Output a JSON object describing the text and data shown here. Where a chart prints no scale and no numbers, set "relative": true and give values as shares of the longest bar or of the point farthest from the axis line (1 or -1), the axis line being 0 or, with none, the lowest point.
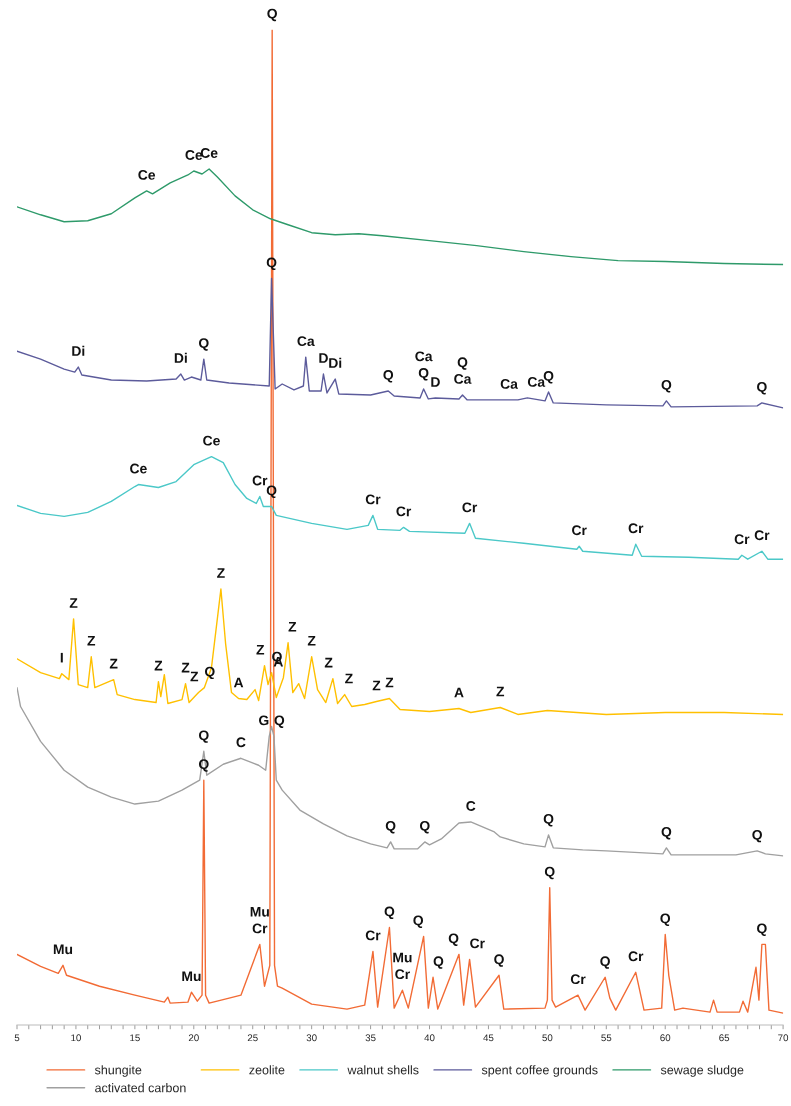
{
  "chart_data": {
    "type": "line",
    "relative": true,
    "legend": "bottom",
    "grid": false,
    "marker": "none",
    "line_style": "solid",
    "xlim": [
      5,
      70
    ],
    "xticks": [
      5,
      {
        "value": 6,
        "label": null
      },
      {
        "value": 7,
        "label": null
      },
      {
        "value": 8,
        "label": null
      },
      {
        "value": 9,
        "label": null
      },
      10,
      {
        "value": 11,
        "label": null
      },
      {
        "value": 12,
        "label": null
      },
      {
        "value": 13,
        "label": null
      },
      {
        "value": 14,
        "label": null
      },
      15,
      {
        "value": 16,
        "label": null
      },
      {
        "value": 17,
        "label": null
      },
      {
        "value": 18,
        "label": null
      },
      {
        "value": 19,
        "label": null
      },
      20,
      {
        "value": 21,
        "label": null
      },
      {
        "value": 22,
        "label": null
      },
      {
        "value": 23,
        "label": null
      },
      {
        "value": 24,
        "label": null
      },
      25,
      {
        "value": 26,
        "label": null
      },
      {
        "value": 27,
        "label": null
      },
      {
        "value": 28,
        "label": null
      },
      {
        "value": 29,
        "label": null
      },
      30,
      {
        "value": 31,
        "label": null
      },
      {
        "value": 32,
        "label": null
      },
      {
        "value": 33,
        "label": null
      },
      {
        "value": 34,
        "label": null
      },
      35,
      {
        "value": 36,
        "label": null
      },
      {
        "value": 37,
        "label": null
      },
      {
        "value": 38,
        "label": null
      },
      {
        "value": 39,
        "label": null
      },
      40,
      {
        "value": 41,
        "label": null
      },
      {
        "value": 42,
        "label": null
      },
      {
        "value": 43,
        "label": null
      },
      {
        "value": 44,
        "label": null
      },
      45,
      {
        "value": 46,
        "label": null
      },
      {
        "value": 47,
        "label": null
      },
      {
        "value": 48,
        "label": null
      },
      {
        "value": 49,
        "label": null
      },
      50,
      {
        "value": 51,
        "label": null
      },
      {
        "value": 52,
        "label": null
      },
      {
        "value": 53,
        "label": null
      },
      {
        "value": 54,
        "label": null
      },
      55,
      {
        "value": 56,
        "label": null
      },
      {
        "value": 57,
        "label": null
      },
      {
        "value": 58,
        "label": null
      },
      {
        "value": 59,
        "label": null
      },
      60,
      {
        "value": 61,
        "label": null
      },
      {
        "value": 62,
        "label": null
      },
      {
        "value": 63,
        "label": null
      },
      {
        "value": 64,
        "label": null
      },
      65,
      {
        "value": 66,
        "label": null
      },
      {
        "value": 67,
        "label": null
      },
      {
        "value": 68,
        "label": null
      },
      {
        "value": 69,
        "label": null
      },
      70
    ],
    "series": [
      {
        "name": "shungite",
        "color": "#f26b35",
        "x": [
          5,
          7,
          8.5,
          8.9,
          9.2,
          12,
          15,
          17.5,
          17.8,
          18,
          19.5,
          19.8,
          20.3,
          20.7,
          20.85,
          21.0,
          21.3,
          23,
          24,
          25.6,
          26.0,
          26.45,
          26.65,
          26.85,
          27.1,
          27.5,
          30,
          33,
          34.5,
          35.2,
          35.6,
          36.6,
          37,
          37.7,
          38.2,
          39.5,
          39.9,
          40.3,
          40.7,
          42.5,
          42.9,
          43.4,
          43.9,
          45.9,
          46.3,
          49.8,
          50.0,
          50.2,
          50.4,
          50.7,
          52.6,
          53.2,
          54.9,
          55.3,
          55.8,
          57.5,
          58.2,
          59.7,
          60,
          60.3,
          60.8,
          61.5,
          63.8,
          64.1,
          64.4,
          66.3,
          66.6,
          67,
          67.7,
          67.95,
          68.2,
          68.5,
          68.8,
          70
        ],
        "values": [
          0.071,
          0.059,
          0.052,
          0.06,
          0.05,
          0.039,
          0.03,
          0.023,
          0.028,
          0.022,
          0.023,
          0.033,
          0.024,
          0.03,
          0.246,
          0.03,
          0.022,
          0.027,
          0.03,
          0.081,
          0.039,
          0.06,
          1.0,
          0.06,
          0.039,
          0.037,
          0.021,
          0.016,
          0.02,
          0.074,
          0.018,
          0.098,
          0.017,
          0.035,
          0.017,
          0.089,
          0.017,
          0.048,
          0.016,
          0.071,
          0.02,
          0.066,
          0.018,
          0.05,
          0.016,
          0.017,
          0.025,
          0.138,
          0.025,
          0.018,
          0.03,
          0.015,
          0.048,
          0.027,
          0.015,
          0.053,
          0.015,
          0.017,
          0.091,
          0.05,
          0.015,
          0.017,
          0.013,
          0.025,
          0.013,
          0.013,
          0.024,
          0.013,
          0.058,
          0.025,
          0.081,
          0.081,
          0.015,
          0.012
        ]
      },
      {
        "name": "activated carbon",
        "color": "#a0a0a0",
        "x": [
          5,
          5.3,
          7,
          9,
          11,
          13,
          15,
          17,
          19,
          20.5,
          20.85,
          21.1,
          22.5,
          24,
          25.5,
          26.1,
          26.4,
          26.6,
          26.8,
          27.0,
          27.5,
          29,
          31,
          33,
          35,
          36.4,
          36.7,
          37,
          39,
          39.6,
          40,
          41,
          42.5,
          43.5,
          45.5,
          46,
          48,
          49.8,
          50.1,
          50.5,
          53,
          55,
          59.8,
          60.1,
          60.5,
          66,
          67.8,
          68.5,
          70
        ],
        "values": [
          0.339,
          0.32,
          0.285,
          0.256,
          0.239,
          0.229,
          0.222,
          0.225,
          0.236,
          0.246,
          0.275,
          0.251,
          0.262,
          0.268,
          0.261,
          0.256,
          0.29,
          0.3,
          0.29,
          0.246,
          0.236,
          0.216,
          0.202,
          0.19,
          0.182,
          0.178,
          0.184,
          0.177,
          0.177,
          0.184,
          0.181,
          0.187,
          0.203,
          0.204,
          0.194,
          0.189,
          0.182,
          0.179,
          0.191,
          0.178,
          0.176,
          0.175,
          0.172,
          0.178,
          0.171,
          0.171,
          0.175,
          0.172,
          0.17
        ]
      },
      {
        "name": "zeolite",
        "color": "#ffc000",
        "x": [
          5,
          7,
          8.6,
          8.8,
          9.4,
          9.8,
          10.2,
          11.0,
          11.3,
          11.6,
          13.2,
          13.5,
          15,
          16.8,
          17,
          17.2,
          17.5,
          17.8,
          19,
          19.3,
          19.6,
          20.4,
          20.9,
          21.5,
          22.3,
          22.7,
          23.2,
          23.8,
          24.5,
          25.2,
          25.5,
          26.0,
          26.3,
          26.6,
          27.0,
          27.6,
          28.0,
          28.4,
          28.9,
          29.4,
          30.0,
          30.5,
          31.2,
          31.8,
          32.2,
          32.8,
          33.4,
          34.5,
          35.5,
          36.6,
          37.5,
          40,
          42.5,
          43.5,
          46,
          47.5,
          50,
          55,
          60,
          65,
          70
        ],
        "values": [
          0.368,
          0.354,
          0.348,
          0.353,
          0.347,
          0.408,
          0.342,
          0.339,
          0.37,
          0.339,
          0.347,
          0.332,
          0.327,
          0.324,
          0.345,
          0.33,
          0.352,
          0.323,
          0.327,
          0.343,
          0.324,
          0.334,
          0.339,
          0.359,
          0.438,
          0.383,
          0.334,
          0.328,
          0.327,
          0.337,
          0.326,
          0.361,
          0.342,
          0.354,
          0.329,
          0.349,
          0.384,
          0.334,
          0.343,
          0.328,
          0.37,
          0.337,
          0.324,
          0.348,
          0.323,
          0.332,
          0.32,
          0.322,
          0.325,
          0.328,
          0.317,
          0.315,
          0.318,
          0.314,
          0.319,
          0.312,
          0.316,
          0.312,
          0.314,
          0.314,
          0.312
        ]
      },
      {
        "name": "walnut shells",
        "color": "#4bc8c8",
        "x": [
          5,
          7,
          9,
          11,
          13,
          15,
          15.3,
          17,
          18.5,
          20,
          21.5,
          22.5,
          23.5,
          24.5,
          25.3,
          25.6,
          25.9,
          26.6,
          27,
          30,
          33,
          34.8,
          35.2,
          35.6,
          37.5,
          37.8,
          38.3,
          43.0,
          43.4,
          43.9,
          48,
          52.5,
          52.7,
          53,
          57.2,
          57.5,
          58,
          62,
          66.2,
          66.5,
          67,
          68.2,
          68.7,
          70
        ],
        "values": [
          0.522,
          0.514,
          0.511,
          0.515,
          0.526,
          0.541,
          0.543,
          0.54,
          0.546,
          0.563,
          0.571,
          0.565,
          0.543,
          0.529,
          0.524,
          0.531,
          0.521,
          0.521,
          0.512,
          0.504,
          0.498,
          0.502,
          0.512,
          0.498,
          0.497,
          0.5,
          0.496,
          0.494,
          0.504,
          0.489,
          0.484,
          0.478,
          0.481,
          0.476,
          0.472,
          0.483,
          0.471,
          0.47,
          0.468,
          0.472,
          0.468,
          0.476,
          0.468,
          0.468
        ]
      },
      {
        "name": "spent coffee grounds",
        "color": "#5c5b9b",
        "x": [
          5,
          7,
          9,
          9.9,
          10.2,
          10.5,
          13,
          16,
          18.5,
          18.9,
          19.2,
          19.8,
          20.6,
          20.85,
          21.1,
          23,
          26.4,
          26.6,
          26.9,
          27.5,
          28.5,
          29.3,
          29.5,
          29.8,
          30.8,
          31.0,
          31.3,
          32.0,
          32.3,
          35,
          36.5,
          37,
          39.2,
          39.5,
          39.9,
          40.5,
          42.5,
          42.8,
          43.2,
          47.5,
          48.3,
          49.8,
          50.1,
          50.5,
          55,
          59.8,
          60.1,
          60.5,
          67.8,
          68.2,
          70
        ],
        "values": [
          0.677,
          0.669,
          0.659,
          0.656,
          0.661,
          0.653,
          0.648,
          0.647,
          0.649,
          0.654,
          0.648,
          0.651,
          0.648,
          0.669,
          0.648,
          0.645,
          0.642,
          0.75,
          0.639,
          0.644,
          0.638,
          0.642,
          0.671,
          0.637,
          0.637,
          0.654,
          0.635,
          0.649,
          0.634,
          0.633,
          0.637,
          0.632,
          0.63,
          0.639,
          0.629,
          0.63,
          0.629,
          0.633,
          0.628,
          0.628,
          0.63,
          0.627,
          0.636,
          0.625,
          0.623,
          0.622,
          0.627,
          0.621,
          0.622,
          0.625,
          0.62
        ]
      },
      {
        "name": "sewage sludge",
        "color": "#2e9a6a",
        "x": [
          5,
          7,
          9,
          11,
          13,
          15,
          16,
          16.5,
          18,
          19.5,
          20,
          20.7,
          21.3,
          22,
          23.5,
          25,
          26.5,
          28,
          30,
          32,
          34,
          36,
          40,
          44,
          48,
          52,
          56,
          60,
          65,
          70
        ],
        "values": [
          0.822,
          0.814,
          0.807,
          0.808,
          0.815,
          0.831,
          0.838,
          0.835,
          0.846,
          0.854,
          0.858,
          0.855,
          0.86,
          0.852,
          0.833,
          0.819,
          0.81,
          0.804,
          0.796,
          0.794,
          0.795,
          0.793,
          0.788,
          0.783,
          0.777,
          0.772,
          0.768,
          0.767,
          0.765,
          0.764
        ]
      }
    ],
    "annotations": [
      {
        "text": "Q",
        "x": 26.65,
        "y": 1.0
      },
      {
        "text": "Ce",
        "x": 16,
        "y": 0.838
      },
      {
        "text": "Ce",
        "x": 20,
        "y": 0.858
      },
      {
        "text": "Ce",
        "x": 21.3,
        "y": 0.86
      },
      {
        "text": "Q",
        "x": 26.6,
        "y": 0.75
      },
      {
        "text": "Di",
        "x": 10.2,
        "y": 0.661
      },
      {
        "text": "Di",
        "x": 18.9,
        "y": 0.654
      },
      {
        "text": "Q",
        "x": 20.85,
        "y": 0.669
      },
      {
        "text": "Ca",
        "x": 29.5,
        "y": 0.671
      },
      {
        "text": "D",
        "x": 31.0,
        "y": 0.654
      },
      {
        "text": "Di",
        "x": 32.0,
        "y": 0.649
      },
      {
        "text": "Q",
        "x": 36.5,
        "y": 0.637
      },
      {
        "text": "Q",
        "x": 39.5,
        "y": 0.639
      },
      {
        "text": "Ca",
        "x": 39.5,
        "y": 0.639
      },
      {
        "text": "D",
        "x": 40.5,
        "y": 0.63
      },
      {
        "text": "Ca",
        "x": 42.8,
        "y": 0.633
      },
      {
        "text": "Q",
        "x": 42.8,
        "y": 0.633
      },
      {
        "text": "Ca",
        "x": 47.5,
        "y": 0.628
      },
      {
        "text": "Ca",
        "x": 48.3,
        "y": 0.63
      },
      {
        "text": "Q",
        "x": 50.1,
        "y": 0.636
      },
      {
        "text": "Q",
        "x": 60.1,
        "y": 0.627
      },
      {
        "text": "Q",
        "x": 68.2,
        "y": 0.625
      },
      {
        "text": "Ce",
        "x": 15.3,
        "y": 0.543
      },
      {
        "text": "Ce",
        "x": 21.5,
        "y": 0.571
      },
      {
        "text": "Cr",
        "x": 25.6,
        "y": 0.531
      },
      {
        "text": "Q",
        "x": 26.6,
        "y": 0.521
      },
      {
        "text": "Cr",
        "x": 35.2,
        "y": 0.512
      },
      {
        "text": "Cr",
        "x": 37.8,
        "y": 0.5
      },
      {
        "text": "Cr",
        "x": 43.4,
        "y": 0.504
      },
      {
        "text": "Cr",
        "x": 52.7,
        "y": 0.481
      },
      {
        "text": "Cr",
        "x": 57.5,
        "y": 0.483
      },
      {
        "text": "Cr",
        "x": 66.5,
        "y": 0.472
      },
      {
        "text": "Cr",
        "x": 68.2,
        "y": 0.476
      },
      {
        "text": "I",
        "x": 8.8,
        "y": 0.353
      },
      {
        "text": "Z",
        "x": 9.8,
        "y": 0.408
      },
      {
        "text": "Z",
        "x": 11.3,
        "y": 0.37
      },
      {
        "text": "Z",
        "x": 13.2,
        "y": 0.347
      },
      {
        "text": "Z",
        "x": 17.0,
        "y": 0.345
      },
      {
        "text": "Z",
        "x": 19.3,
        "y": 0.343
      },
      {
        "text": "Z",
        "x": 20.4,
        "y": 0.334
      },
      {
        "text": "Q",
        "x": 20.9,
        "y": 0.339
      },
      {
        "text": "Z",
        "x": 22.3,
        "y": 0.438
      },
      {
        "text": "A",
        "x": 23.8,
        "y": 0.328
      },
      {
        "text": "Z",
        "x": 26.0,
        "y": 0.361
      },
      {
        "text": "Q",
        "x": 26.6,
        "y": 0.354
      },
      {
        "text": "A",
        "x": 27.6,
        "y": 0.349
      },
      {
        "text": "Z",
        "x": 28.0,
        "y": 0.384
      },
      {
        "text": "Z",
        "x": 30.0,
        "y": 0.37
      },
      {
        "text": "Z",
        "x": 31.8,
        "y": 0.348
      },
      {
        "text": "Z",
        "x": 32.8,
        "y": 0.332
      },
      {
        "text": "Z",
        "x": 35.5,
        "y": 0.325
      },
      {
        "text": "Z",
        "x": 36.6,
        "y": 0.328
      },
      {
        "text": "A",
        "x": 42.5,
        "y": 0.318
      },
      {
        "text": "Z",
        "x": 46,
        "y": 0.319
      },
      {
        "text": "G",
        "x": 26.4,
        "y": 0.29
      },
      {
        "text": "Q",
        "x": 26.8,
        "y": 0.29
      },
      {
        "text": "Q",
        "x": 20.85,
        "y": 0.275
      },
      {
        "text": "C",
        "x": 24,
        "y": 0.268
      },
      {
        "text": "Q",
        "x": 36.7,
        "y": 0.184
      },
      {
        "text": "Q",
        "x": 39.6,
        "y": 0.184
      },
      {
        "text": "C",
        "x": 43.5,
        "y": 0.204
      },
      {
        "text": "Q",
        "x": 50.1,
        "y": 0.191
      },
      {
        "text": "Q",
        "x": 60.1,
        "y": 0.178
      },
      {
        "text": "Q",
        "x": 67.8,
        "y": 0.175
      },
      {
        "text": "Q",
        "x": 20.85,
        "y": 0.246
      },
      {
        "text": "Q",
        "x": 50.2,
        "y": 0.138
      },
      {
        "text": "Mu",
        "x": 8.9,
        "y": 0.06
      },
      {
        "text": "Mu",
        "x": 19.8,
        "y": 0.033
      },
      {
        "text": "Cr",
        "x": 25.6,
        "y": 0.081
      },
      {
        "text": "Mu",
        "x": 25.6,
        "y": 0.081
      },
      {
        "text": "Cr",
        "x": 35.2,
        "y": 0.074
      },
      {
        "text": "Q",
        "x": 36.6,
        "y": 0.098
      },
      {
        "text": "Cr",
        "x": 37.7,
        "y": 0.035
      },
      {
        "text": "Mu",
        "x": 37.7,
        "y": 0.035
      },
      {
        "text": "Q",
        "x": 39.5,
        "y": 0.089
      },
      {
        "text": "Q",
        "x": 40.3,
        "y": 0.048
      },
      {
        "text": "Q",
        "x": 42.5,
        "y": 0.071
      },
      {
        "text": "Cr",
        "x": 43.4,
        "y": 0.066
      },
      {
        "text": "Q",
        "x": 45.9,
        "y": 0.05
      },
      {
        "text": "Cr",
        "x": 52.6,
        "y": 0.03
      },
      {
        "text": "Q",
        "x": 54.9,
        "y": 0.048
      },
      {
        "text": "Cr",
        "x": 57.5,
        "y": 0.053
      },
      {
        "text": "Q",
        "x": 60,
        "y": 0.091
      },
      {
        "text": "Q",
        "x": 68.2,
        "y": 0.081
      }
    ]
  }
}
